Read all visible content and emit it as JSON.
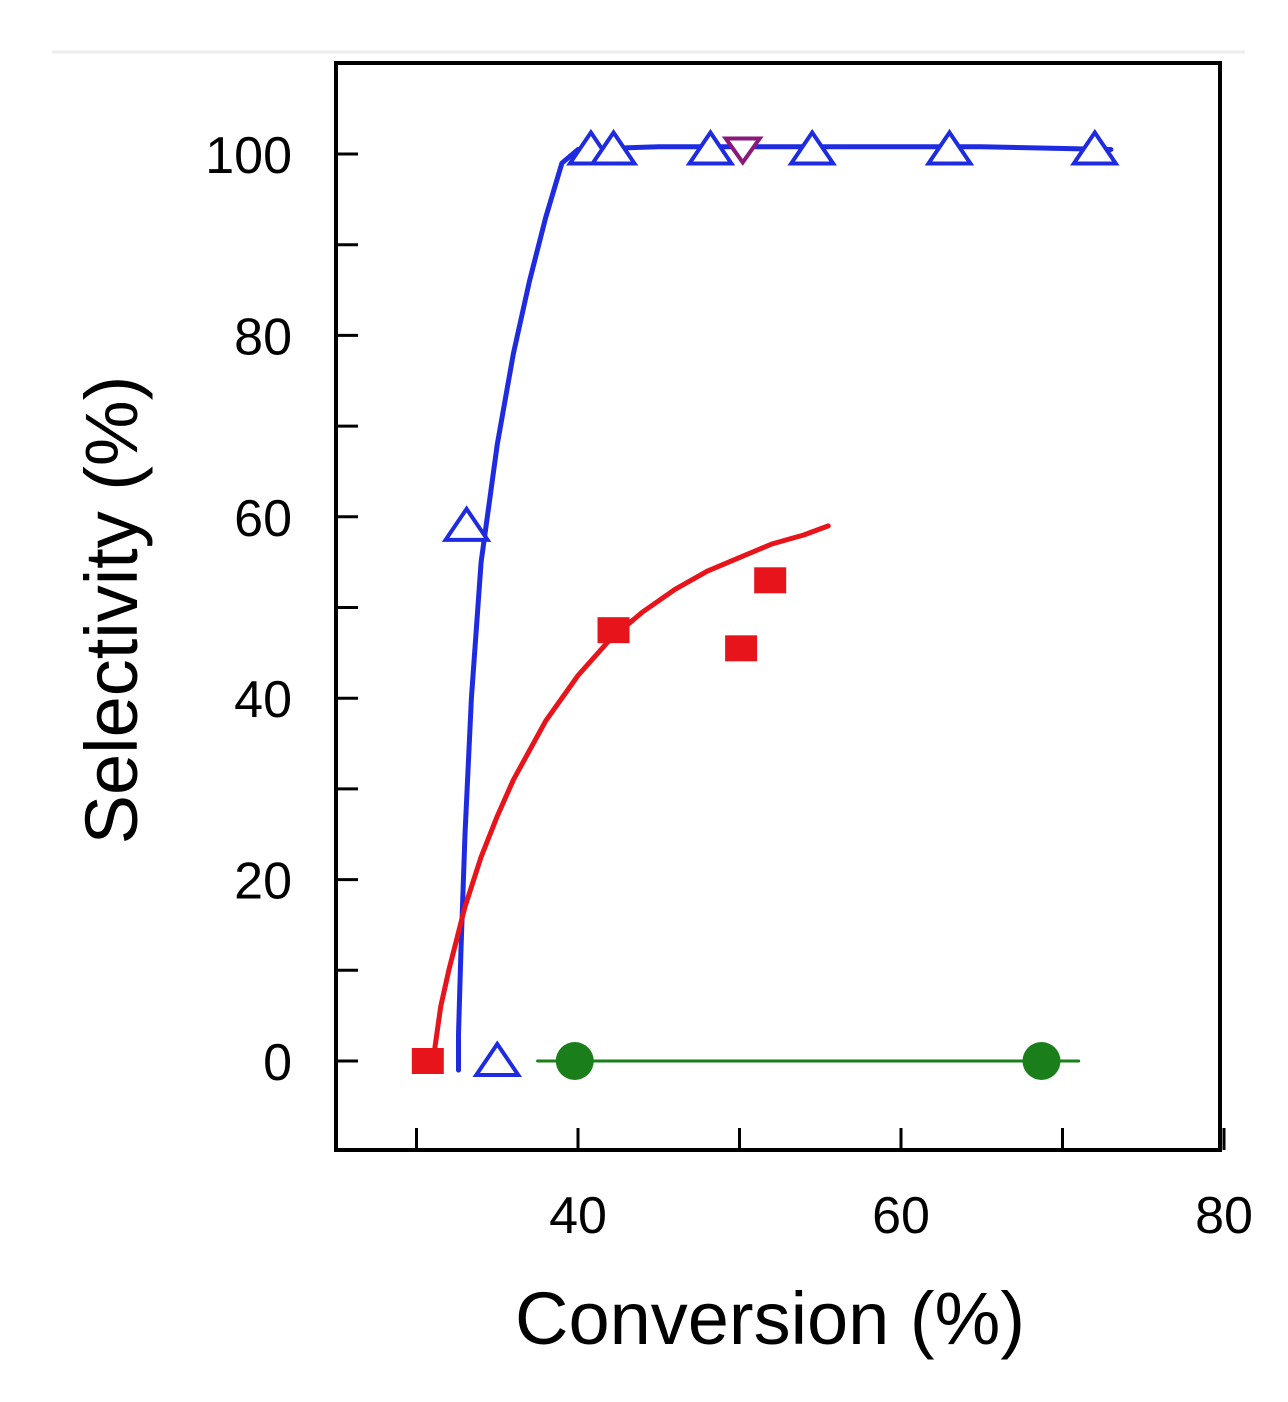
{
  "chart_data": {
    "type": "scatter",
    "title": "",
    "xlabel": "Conversion (%)",
    "ylabel": "Selectivity (%)",
    "xlim": [
      25,
      80
    ],
    "ylim": [
      -10,
      110
    ],
    "x_ticks": [
      30,
      40,
      50,
      60,
      70,
      80
    ],
    "x_tick_labels": [
      "",
      "40",
      "",
      "60",
      "",
      "80"
    ],
    "y_ticks": [
      0,
      10,
      20,
      30,
      40,
      50,
      60,
      70,
      80,
      90,
      100
    ],
    "y_tick_labels": [
      "0",
      "",
      "20",
      "",
      "40",
      "",
      "60",
      "",
      "80",
      "",
      "100"
    ],
    "grid": false,
    "legend": "none",
    "series": [
      {
        "name": "blue open triangles",
        "marker": "triangle-up",
        "color": "#1f2be0",
        "filled": false,
        "points": [
          [
            33.1,
            59
          ],
          [
            35,
            0
          ],
          [
            40.8,
            100.5
          ],
          [
            42.2,
            100.5
          ],
          [
            48.2,
            100.5
          ],
          [
            54.5,
            100.5
          ],
          [
            63,
            100.5
          ],
          [
            72,
            100.5
          ]
        ],
        "fit": [
          [
            32.6,
            -1
          ],
          [
            32.6,
            3
          ],
          [
            32.75,
            12
          ],
          [
            33,
            25
          ],
          [
            33.4,
            40
          ],
          [
            34,
            55
          ],
          [
            35,
            68
          ],
          [
            36,
            78
          ],
          [
            37,
            86
          ],
          [
            38,
            93
          ],
          [
            39,
            99
          ],
          [
            40,
            100.5
          ],
          [
            45,
            100.8
          ],
          [
            55,
            100.8
          ],
          [
            65,
            100.8
          ],
          [
            73,
            100.5
          ]
        ]
      },
      {
        "name": "purple open inverted triangle",
        "marker": "triangle-down",
        "color": "#8a1a7a",
        "filled": false,
        "points": [
          [
            50.2,
            100.5
          ]
        ]
      },
      {
        "name": "red filled squares",
        "marker": "square",
        "color": "#e8141c",
        "filled": true,
        "points": [
          [
            30.7,
            0
          ],
          [
            42.2,
            47.5
          ],
          [
            50.1,
            45.5
          ],
          [
            51.9,
            53
          ]
        ],
        "fit": [
          [
            31.1,
            1
          ],
          [
            31.5,
            6
          ],
          [
            32,
            10
          ],
          [
            33,
            17
          ],
          [
            34,
            22.5
          ],
          [
            35,
            27
          ],
          [
            36,
            31
          ],
          [
            38,
            37.5
          ],
          [
            40,
            42.5
          ],
          [
            42,
            46.5
          ],
          [
            44,
            49.5
          ],
          [
            46,
            52
          ],
          [
            48,
            54
          ],
          [
            50,
            55.5
          ],
          [
            52,
            57
          ],
          [
            54,
            58
          ],
          [
            55.5,
            59
          ]
        ]
      },
      {
        "name": "green filled circles",
        "marker": "circle",
        "color": "#1a7f1a",
        "filled": true,
        "points": [
          [
            39.8,
            0
          ],
          [
            68.7,
            0
          ]
        ],
        "fit": [
          [
            37.5,
            0
          ],
          [
            71,
            0
          ]
        ]
      }
    ]
  }
}
